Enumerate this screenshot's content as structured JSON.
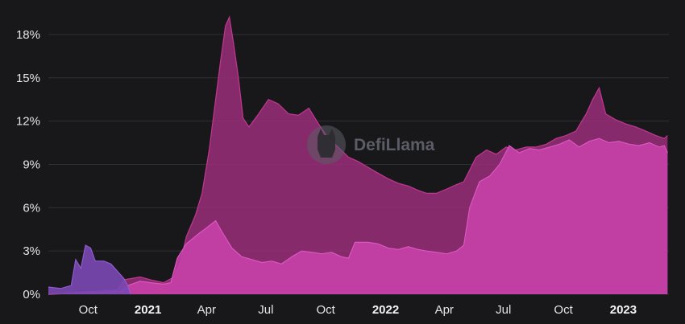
{
  "watermark": {
    "text": "DefiLlama",
    "icon": "llama-icon"
  },
  "colors": {
    "background": "#18181b",
    "grid": "#2f2f35",
    "series_a_fill": "#9a2e7a",
    "series_a_stroke": "#c0388f",
    "series_b_fill": "#c840a8",
    "series_b_stroke": "#d957bf",
    "early_series_fill": "#7a48b4"
  },
  "chart_data": {
    "type": "area",
    "x_axis": {
      "ticks": [
        "Oct",
        "2021",
        "Apr",
        "Jul",
        "Oct",
        "2022",
        "Apr",
        "Jul",
        "Oct",
        "2023"
      ],
      "major_ticks": [
        "2021",
        "2022",
        "2023"
      ],
      "range": [
        "2020-08",
        "2023-03"
      ]
    },
    "y_axis": {
      "ticks": [
        "0%",
        "3%",
        "6%",
        "9%",
        "12%",
        "15%",
        "18%"
      ],
      "range": [
        0,
        19.5
      ]
    },
    "grid": true,
    "legend": "none",
    "series": [
      {
        "fill": "#9a2e7a",
        "points": [
          [
            "2020-08-01",
            0.0
          ],
          [
            "2020-11-15",
            0.3
          ],
          [
            "2020-11-25",
            1.0
          ],
          [
            "2020-12-20",
            1.2
          ],
          [
            "2021-01-05",
            1.0
          ],
          [
            "2021-01-25",
            0.8
          ],
          [
            "2021-02-10",
            1.2
          ],
          [
            "2021-02-20",
            2.3
          ],
          [
            "2021-03-01",
            4.0
          ],
          [
            "2021-03-15",
            5.5
          ],
          [
            "2021-03-25",
            7.0
          ],
          [
            "2021-04-05",
            10.0
          ],
          [
            "2021-04-15",
            13.5
          ],
          [
            "2021-04-22",
            16.0
          ],
          [
            "2021-04-30",
            18.6
          ],
          [
            "2021-05-06",
            19.2
          ],
          [
            "2021-05-12",
            17.5
          ],
          [
            "2021-05-20",
            15.0
          ],
          [
            "2021-05-27",
            12.2
          ],
          [
            "2021-06-05",
            11.6
          ],
          [
            "2021-06-20",
            12.5
          ],
          [
            "2021-07-05",
            13.5
          ],
          [
            "2021-07-20",
            13.2
          ],
          [
            "2021-08-05",
            12.5
          ],
          [
            "2021-08-20",
            12.4
          ],
          [
            "2021-09-05",
            12.9
          ],
          [
            "2021-09-20",
            11.8
          ],
          [
            "2021-10-05",
            10.8
          ],
          [
            "2021-10-20",
            10.2
          ],
          [
            "2021-11-05",
            9.5
          ],
          [
            "2021-11-20",
            9.2
          ],
          [
            "2021-12-05",
            8.8
          ],
          [
            "2021-12-20",
            8.4
          ],
          [
            "2022-01-05",
            8.0
          ],
          [
            "2022-01-20",
            7.7
          ],
          [
            "2022-02-05",
            7.5
          ],
          [
            "2022-02-20",
            7.2
          ],
          [
            "2022-03-05",
            7.0
          ],
          [
            "2022-03-20",
            7.0
          ],
          [
            "2022-04-05",
            7.3
          ],
          [
            "2022-04-20",
            7.6
          ],
          [
            "2022-05-01",
            7.8
          ],
          [
            "2022-05-20",
            9.5
          ],
          [
            "2022-06-05",
            10.0
          ],
          [
            "2022-06-20",
            9.7
          ],
          [
            "2022-07-05",
            10.2
          ],
          [
            "2022-07-20",
            10.0
          ],
          [
            "2022-08-05",
            10.2
          ],
          [
            "2022-08-20",
            10.2
          ],
          [
            "2022-09-05",
            10.4
          ],
          [
            "2022-09-20",
            10.8
          ],
          [
            "2022-10-05",
            11.0
          ],
          [
            "2022-10-20",
            11.3
          ],
          [
            "2022-11-05",
            12.5
          ],
          [
            "2022-11-15",
            13.5
          ],
          [
            "2022-11-25",
            14.3
          ],
          [
            "2022-12-05",
            12.5
          ],
          [
            "2022-12-20",
            12.1
          ],
          [
            "2023-01-05",
            11.8
          ],
          [
            "2023-01-20",
            11.6
          ],
          [
            "2023-02-05",
            11.3
          ],
          [
            "2023-02-20",
            11.0
          ],
          [
            "2023-03-05",
            10.8
          ],
          [
            "2023-03-10",
            11.0
          ]
        ]
      },
      {
        "fill": "#c840a8",
        "points": [
          [
            "2020-08-01",
            0.0
          ],
          [
            "2020-11-20",
            0.2
          ],
          [
            "2020-12-01",
            0.6
          ],
          [
            "2020-12-20",
            0.9
          ],
          [
            "2021-01-05",
            0.8
          ],
          [
            "2021-01-25",
            0.7
          ],
          [
            "2021-02-05",
            0.8
          ],
          [
            "2021-02-15",
            2.5
          ],
          [
            "2021-03-01",
            3.5
          ],
          [
            "2021-03-20",
            4.2
          ],
          [
            "2021-04-01",
            4.6
          ],
          [
            "2021-04-15",
            5.1
          ],
          [
            "2021-04-25",
            4.3
          ],
          [
            "2021-05-10",
            3.2
          ],
          [
            "2021-05-25",
            2.6
          ],
          [
            "2021-06-10",
            2.4
          ],
          [
            "2021-06-25",
            2.2
          ],
          [
            "2021-07-10",
            2.3
          ],
          [
            "2021-07-25",
            2.1
          ],
          [
            "2021-08-10",
            2.6
          ],
          [
            "2021-08-25",
            3.0
          ],
          [
            "2021-09-10",
            2.9
          ],
          [
            "2021-09-25",
            2.8
          ],
          [
            "2021-10-10",
            2.9
          ],
          [
            "2021-10-25",
            2.6
          ],
          [
            "2021-11-05",
            2.5
          ],
          [
            "2021-11-15",
            3.6
          ],
          [
            "2021-12-05",
            3.6
          ],
          [
            "2021-12-20",
            3.5
          ],
          [
            "2022-01-05",
            3.2
          ],
          [
            "2022-01-20",
            3.1
          ],
          [
            "2022-02-05",
            3.3
          ],
          [
            "2022-02-20",
            3.1
          ],
          [
            "2022-03-05",
            3.0
          ],
          [
            "2022-03-20",
            2.9
          ],
          [
            "2022-04-05",
            2.8
          ],
          [
            "2022-04-20",
            3.0
          ],
          [
            "2022-05-01",
            3.4
          ],
          [
            "2022-05-10",
            6.0
          ],
          [
            "2022-05-25",
            7.8
          ],
          [
            "2022-06-10",
            8.2
          ],
          [
            "2022-06-25",
            9.0
          ],
          [
            "2022-07-10",
            10.3
          ],
          [
            "2022-07-25",
            9.8
          ],
          [
            "2022-08-10",
            10.1
          ],
          [
            "2022-08-25",
            10.0
          ],
          [
            "2022-09-10",
            10.2
          ],
          [
            "2022-09-25",
            10.4
          ],
          [
            "2022-10-10",
            10.7
          ],
          [
            "2022-10-25",
            10.2
          ],
          [
            "2022-11-10",
            10.6
          ],
          [
            "2022-11-25",
            10.8
          ],
          [
            "2022-12-10",
            10.5
          ],
          [
            "2022-12-25",
            10.6
          ],
          [
            "2023-01-10",
            10.4
          ],
          [
            "2023-01-25",
            10.3
          ],
          [
            "2023-02-10",
            10.5
          ],
          [
            "2023-02-25",
            10.2
          ],
          [
            "2023-03-05",
            10.3
          ],
          [
            "2023-03-10",
            9.8
          ]
        ]
      },
      {
        "fill": "#7a48b4",
        "points": [
          [
            "2020-08-01",
            0.5
          ],
          [
            "2020-08-20",
            0.4
          ],
          [
            "2020-09-05",
            0.6
          ],
          [
            "2020-09-12",
            2.4
          ],
          [
            "2020-09-20",
            1.8
          ],
          [
            "2020-09-27",
            3.4
          ],
          [
            "2020-10-05",
            3.2
          ],
          [
            "2020-10-12",
            2.3
          ],
          [
            "2020-10-25",
            2.3
          ],
          [
            "2020-11-05",
            2.1
          ],
          [
            "2020-11-15",
            1.6
          ],
          [
            "2020-11-25",
            1.1
          ],
          [
            "2020-12-01",
            0.6
          ],
          [
            "2020-12-05",
            0.0
          ]
        ]
      }
    ]
  }
}
